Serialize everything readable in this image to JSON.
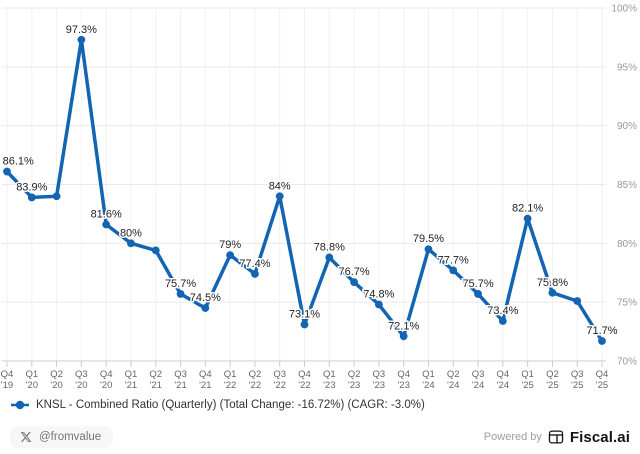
{
  "chart_data": {
    "type": "line",
    "title": "",
    "series": [
      {
        "name": "KNSL - Combined Ratio (Quarterly)",
        "values": [
          86.1,
          83.9,
          84.0,
          97.3,
          81.6,
          80.0,
          79.4,
          75.7,
          74.5,
          79.0,
          77.4,
          84.0,
          73.1,
          78.8,
          76.7,
          74.8,
          72.1,
          79.5,
          77.7,
          75.7,
          73.4,
          82.1,
          75.8,
          75.1,
          71.7
        ],
        "point_labels": [
          "86.1%",
          "83.9%",
          "",
          "97.3%",
          "81.6%",
          "80%",
          "",
          "75.7%",
          "74.5%",
          "79%",
          "77.4%",
          "84%",
          "73.1%",
          "78.8%",
          "76.7%",
          "74.8%",
          "72.1%",
          "79.5%",
          "77.7%",
          "75.7%",
          "73.4%",
          "82.1%",
          "75.8%",
          "",
          "71.7%"
        ],
        "color": "#1464b4"
      }
    ],
    "categories": [
      "Q4 '19",
      "Q1 '20",
      "Q2 '20",
      "Q3 '20",
      "Q4 '20",
      "Q1 '21",
      "Q2 '21",
      "Q3 '21",
      "Q4 '21",
      "Q1 '22",
      "Q2 '22",
      "Q3 '22",
      "Q4 '22",
      "Q1 '23",
      "Q2 '23",
      "Q3 '23",
      "Q4 '23",
      "Q1 '24",
      "Q2 '24",
      "Q3 '24",
      "Q4 '24",
      "Q1 '25",
      "Q2 '25",
      "Q3 '25",
      "Q4 '25"
    ],
    "xlabel": "",
    "ylabel": "",
    "ylim": [
      70,
      100
    ],
    "yticks": [
      70,
      75,
      80,
      85,
      90,
      95,
      100
    ],
    "ytick_suffix": "%",
    "yaxis_side": "right",
    "grid": true,
    "legend_position": "bottom-left"
  },
  "legend": {
    "label": "KNSL - Combined Ratio (Quarterly) (Total Change: -16.72%) (CAGR: -3.0%)"
  },
  "footer": {
    "handle": "@fromvalue",
    "powered_by": "Powered by",
    "brand": "Fiscal.ai"
  },
  "colors": {
    "line": "#1464b4",
    "data_label": "#222222",
    "axis_label": "#999999",
    "xtick_label": "#666666",
    "grid_h": "#e9e9e9",
    "grid_v": "#f2f2f2",
    "axis_line": "#cccccc"
  },
  "icons": {
    "x_logo": "x-logo-icon",
    "brand_logo": "fiscal-ai-logo-icon",
    "legend_marker": "legend-line-marker-icon"
  }
}
